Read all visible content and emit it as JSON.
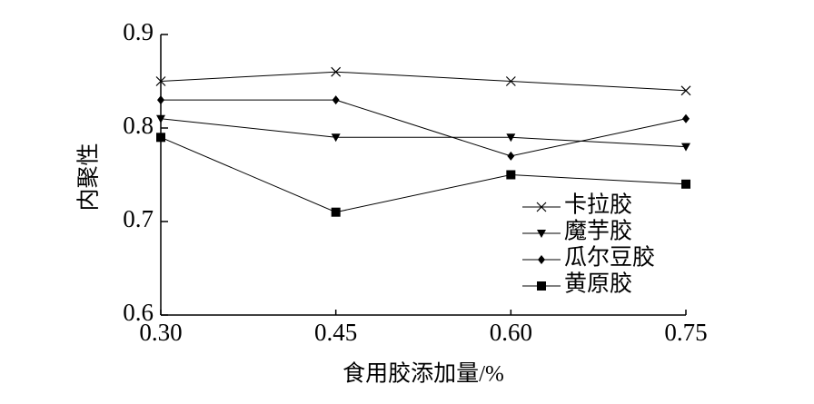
{
  "chart_data": {
    "type": "line",
    "y_label": "内聚性",
    "x_label": "食用胶添加量/%",
    "x": [
      0.3,
      0.45,
      0.6,
      0.75
    ],
    "series": [
      {
        "name": "卡拉胶",
        "color": "#000000",
        "marker": "x",
        "values": [
          0.85,
          0.86,
          0.85,
          0.84
        ]
      },
      {
        "name": "魔芋胶",
        "color": "#000000",
        "marker": "triangle-down",
        "values": [
          0.81,
          0.79,
          0.79,
          0.78
        ]
      },
      {
        "name": "瓜尔豆胶",
        "color": "#000000",
        "marker": "diamond",
        "values": [
          0.83,
          0.83,
          0.77,
          0.81
        ]
      },
      {
        "name": "黄原胶",
        "color": "#000000",
        "marker": "square",
        "values": [
          0.79,
          0.71,
          0.75,
          0.74
        ]
      }
    ],
    "xlim": [
      0.3,
      0.75
    ],
    "xticks": [
      {
        "value": 0.3,
        "label": "0.30"
      },
      {
        "value": 0.45,
        "label": "0.45"
      },
      {
        "value": 0.6,
        "label": "0.60"
      },
      {
        "value": 0.75,
        "label": "0.75"
      }
    ],
    "ylim": [
      0.6,
      0.9
    ],
    "yticks": [
      0.6,
      0.7,
      0.8,
      0.9
    ],
    "grid": false,
    "legend": "lower right"
  }
}
